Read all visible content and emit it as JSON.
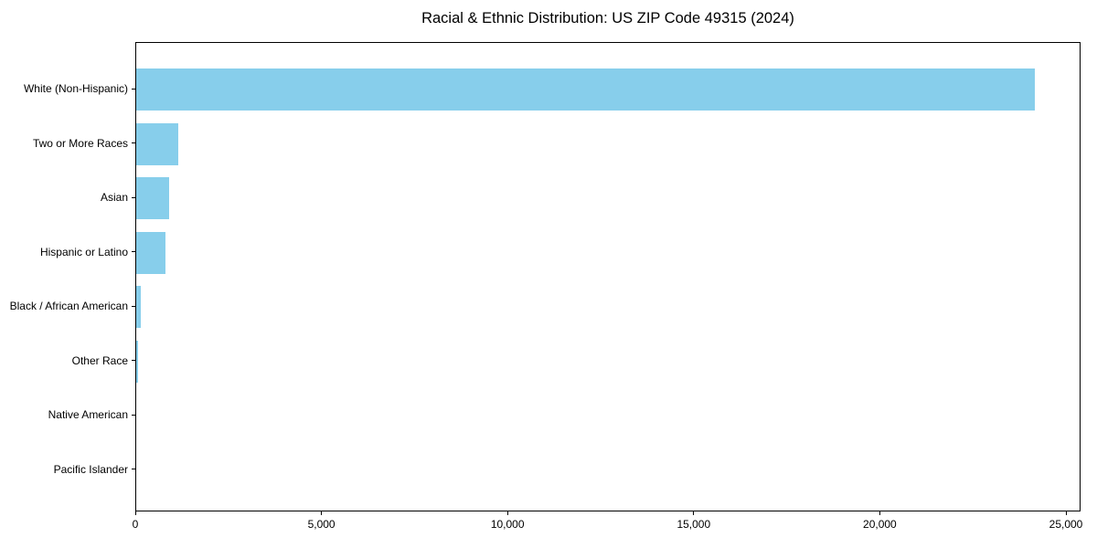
{
  "title": "Racial & Ethnic Distribution: US ZIP Code 49315 (2024)",
  "chart_data": {
    "type": "bar",
    "orientation": "horizontal",
    "title": "Racial & Ethnic Distribution: US ZIP Code 49315 (2024)",
    "categories": [
      "White (Non-Hispanic)",
      "Two or More Races",
      "Asian",
      "Hispanic or Latino",
      "Black / African American",
      "Other Race",
      "Native American",
      "Pacific Islander"
    ],
    "values": [
      24150,
      1140,
      890,
      785,
      125,
      60,
      0,
      0
    ],
    "xlabel": "",
    "ylabel": "",
    "xlim": [
      0,
      25000
    ],
    "x_ticks": [
      0,
      5000,
      10000,
      15000,
      20000,
      25000
    ],
    "x_tick_labels": [
      "0",
      "5,000",
      "10,000",
      "15,000",
      "20,000",
      "25,000"
    ],
    "grid": false,
    "legend": "none",
    "bar_color": "#87CEEB",
    "background_color": "#FFFFFF",
    "spine_color": "#000000"
  }
}
